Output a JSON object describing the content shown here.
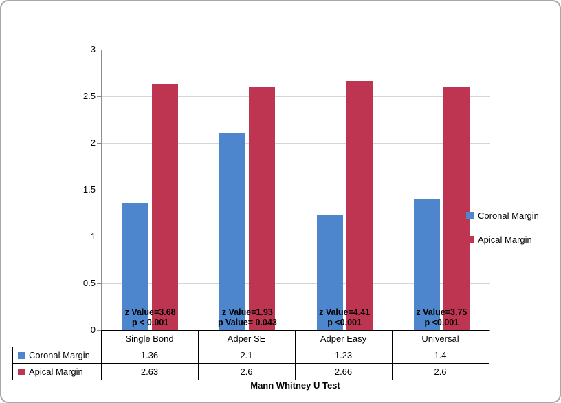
{
  "chart_data": {
    "type": "bar",
    "title": "",
    "caption": "Mann Whitney U Test",
    "categories": [
      "Single Bond",
      "Adper SE",
      "Adper Easy",
      "Universal"
    ],
    "series": [
      {
        "name": "Coronal Margin",
        "color": "#4e86cd",
        "values": [
          1.36,
          2.1,
          1.23,
          1.4
        ]
      },
      {
        "name": "Apical Margin",
        "color": "#bd3550",
        "values": [
          2.63,
          2.6,
          2.66,
          2.6
        ]
      }
    ],
    "annotations": [
      {
        "lines": [
          "z Value=3.68",
          "p < 0.001"
        ]
      },
      {
        "lines": [
          "z Value=1.93",
          "p Value= 0.043"
        ]
      },
      {
        "lines": [
          "z Value=4.41",
          "p <0.001"
        ]
      },
      {
        "lines": [
          "z Value=3.75",
          "p <0.001"
        ]
      }
    ],
    "y_axis": {
      "min": 0,
      "max": 3,
      "step": 0.5,
      "ticks": [
        0,
        0.5,
        1,
        1.5,
        2,
        2.5,
        3
      ]
    },
    "legend": {
      "position": "right",
      "entries": [
        "Coronal Margin",
        "Apical Margin"
      ]
    },
    "grid": true,
    "table": {
      "rows": [
        {
          "label": "Coronal Margin",
          "values": [
            "1.36",
            "2.1",
            "1.23",
            "1.4"
          ]
        },
        {
          "label": "Apical Margin",
          "values": [
            "2.63",
            "2.6",
            "2.66",
            "2.6"
          ]
        }
      ]
    }
  }
}
